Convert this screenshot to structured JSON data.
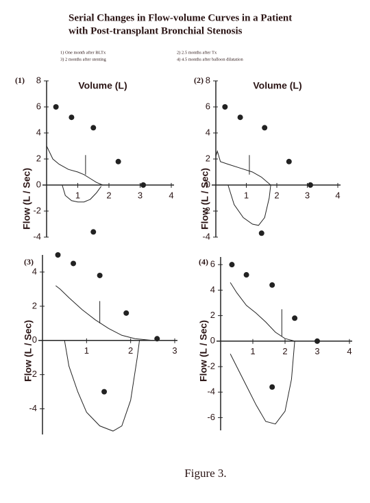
{
  "title": [
    "Serial Changes in Flow-volume Curves in a Patient",
    "with Post-transplant Bronchial Stenosis"
  ],
  "notes": [
    "1) One month after BLTx",
    "2) 2.5 months after Tx",
    "3) 2 months after stenting",
    "4) 4.5 months after balloon dilatation"
  ],
  "caption": "Figure 3.",
  "chart_data": [
    {
      "type": "line",
      "panel_label": "(1)",
      "xlabel": "Volume (L)",
      "ylabel": "Flow (L / Sec)",
      "xlim": [
        0,
        4
      ],
      "ylim": [
        -4,
        8
      ],
      "xticks": [
        1,
        2,
        3,
        4
      ],
      "yticks": [
        -4,
        -2,
        0,
        2,
        4,
        6,
        8
      ],
      "color": "#222",
      "series": [
        {
          "style": "dots",
          "x": [
            0.3,
            0.8,
            1.5,
            2.3,
            3.1,
            1.5
          ],
          "values": [
            6,
            5.2,
            4.4,
            1.8,
            0,
            -3.6
          ]
        },
        {
          "style": "line",
          "x": [
            0,
            0.1,
            0.2,
            0.4,
            0.7,
            1,
            1.2,
            1.4,
            1.6,
            1.8
          ],
          "values": [
            3,
            2.5,
            2,
            1.6,
            1.2,
            1,
            0.8,
            0.5,
            0.2,
            0
          ]
        },
        {
          "style": "line",
          "x": [
            0.5,
            0.6,
            0.8,
            1,
            1.2,
            1.4,
            1.6,
            1.75
          ],
          "values": [
            0,
            -0.8,
            -1.2,
            -1.3,
            -1.3,
            -1.1,
            -0.6,
            -0.1
          ]
        },
        {
          "style": "line",
          "x": [
            1.25,
            1.25
          ],
          "values": [
            0.8,
            2.3
          ]
        }
      ]
    },
    {
      "type": "line",
      "panel_label": "(2)",
      "xlabel": "Volume (L)",
      "ylabel": "Flow (L / Sec)",
      "xlim": [
        0,
        4
      ],
      "ylim": [
        -4,
        8
      ],
      "xticks": [
        1,
        2,
        3,
        4
      ],
      "yticks": [
        -4,
        -2,
        0,
        2,
        4,
        6,
        8
      ],
      "color": "#222",
      "series": [
        {
          "style": "dots",
          "x": [
            0.3,
            0.8,
            1.6,
            2.4,
            3.1,
            1.5
          ],
          "values": [
            6,
            5.2,
            4.4,
            1.8,
            0,
            -3.7
          ]
        },
        {
          "style": "line",
          "x": [
            0,
            0.05,
            0.15,
            0.4,
            0.8,
            1.2,
            1.5,
            1.7,
            1.8
          ],
          "values": [
            2.2,
            2.6,
            1.8,
            1.6,
            1.3,
            1,
            0.6,
            0.2,
            0
          ]
        },
        {
          "style": "line",
          "x": [
            0.4,
            0.6,
            0.9,
            1.2,
            1.4,
            1.6,
            1.75,
            1.8
          ],
          "values": [
            0,
            -1.5,
            -2.5,
            -3,
            -3.1,
            -2.5,
            -1,
            0
          ]
        },
        {
          "style": "line",
          "x": [
            1.1,
            1.1
          ],
          "values": [
            0.8,
            2.3
          ]
        }
      ]
    },
    {
      "type": "line",
      "panel_label": "(3)",
      "ylabel": "Flow (L / Sec)",
      "xlim": [
        0,
        3
      ],
      "ylim": [
        -5.5,
        5
      ],
      "xticks": [
        1,
        2,
        3
      ],
      "yticks": [
        -4,
        -2,
        0,
        2,
        4
      ],
      "color": "#222",
      "series": [
        {
          "style": "dots",
          "x": [
            0.35,
            0.7,
            1.3,
            1.9,
            2.6,
            1.4
          ],
          "values": [
            5,
            4.5,
            3.8,
            1.6,
            0.1,
            -3
          ]
        },
        {
          "style": "line",
          "x": [
            0.3,
            0.4,
            0.6,
            0.9,
            1.2,
            1.5,
            1.8,
            2.1,
            2.5
          ],
          "values": [
            3.2,
            3,
            2.5,
            1.8,
            1.2,
            0.7,
            0.3,
            0.1,
            0
          ]
        },
        {
          "style": "line",
          "x": [
            0.5,
            0.6,
            0.8,
            1,
            1.3,
            1.6,
            1.8,
            2,
            2.15,
            2.2
          ],
          "values": [
            0,
            -1.5,
            -3,
            -4.2,
            -5,
            -5.3,
            -5,
            -3.5,
            -1,
            0
          ]
        },
        {
          "style": "line",
          "x": [
            1.3,
            1.3
          ],
          "values": [
            1,
            2.3
          ]
        }
      ]
    },
    {
      "type": "line",
      "panel_label": "(4)",
      "ylabel": "Flow (L / Sec)",
      "xlim": [
        0,
        4
      ],
      "ylim": [
        -7,
        6.6
      ],
      "xticks": [
        1,
        2,
        3,
        4
      ],
      "yticks": [
        -6,
        -4,
        -2,
        0,
        2,
        4,
        6
      ],
      "color": "#222",
      "series": [
        {
          "style": "dots",
          "x": [
            0.35,
            0.8,
            1.6,
            2.3,
            3,
            1.6
          ],
          "values": [
            6,
            5.2,
            4.4,
            1.8,
            0,
            -3.6
          ]
        },
        {
          "style": "line",
          "x": [
            0.3,
            0.5,
            0.8,
            1.1,
            1.4,
            1.7,
            2,
            2.3
          ],
          "values": [
            4.6,
            3.8,
            2.8,
            2.2,
            1.5,
            0.7,
            0.2,
            0
          ]
        },
        {
          "style": "line",
          "x": [
            0.3,
            0.5,
            0.8,
            1.1,
            1.4,
            1.7,
            2,
            2.2,
            2.3
          ],
          "values": [
            -1,
            -2,
            -3.5,
            -5,
            -6.3,
            -6.5,
            -5.5,
            -3,
            0
          ]
        },
        {
          "style": "line",
          "x": [
            1.9,
            1.9
          ],
          "values": [
            0.4,
            2.5
          ]
        }
      ]
    }
  ]
}
